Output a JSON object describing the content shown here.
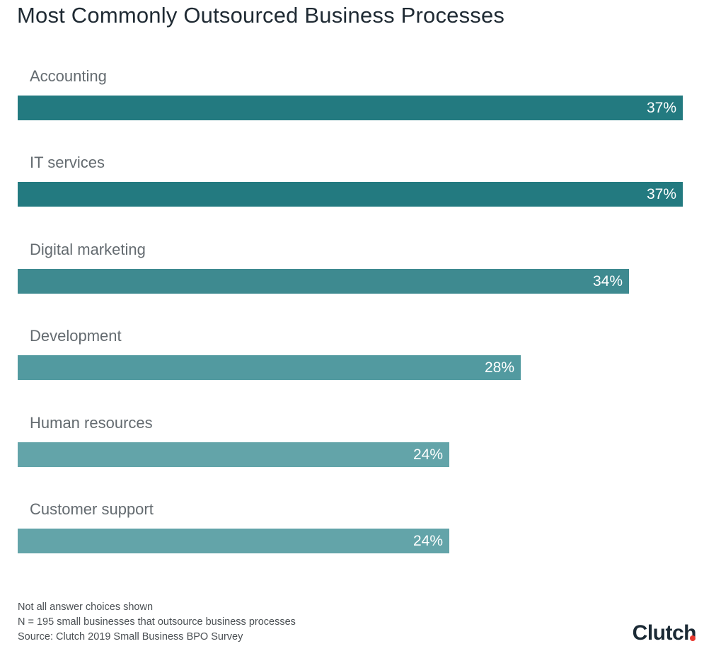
{
  "chart_data": {
    "type": "bar",
    "orientation": "horizontal",
    "title": "Most Commonly Outsourced Business Processes",
    "categories": [
      "Accounting",
      "IT services",
      "Digital marketing",
      "Development",
      "Human resources",
      "Customer support"
    ],
    "values": [
      37,
      37,
      34,
      28,
      24,
      24
    ],
    "value_labels": [
      "37%",
      "37%",
      "34%",
      "28%",
      "24%",
      "24%"
    ],
    "value_unit": "%",
    "xlim": [
      0,
      37
    ],
    "bar_colors": [
      "#237a80",
      "#237a80",
      "#3e8a90",
      "#529aa0",
      "#63a4a9",
      "#63a4a9"
    ],
    "grid": false,
    "legend": "none"
  },
  "footnotes": {
    "line1": "Not all answer choices shown",
    "line2": "N = 195 small businesses that outsource business processes",
    "line3": "Source: Clutch 2019 Small Business BPO Survey"
  },
  "brand": {
    "logo_text": "Clutch",
    "dot_color": "#e8382f"
  }
}
